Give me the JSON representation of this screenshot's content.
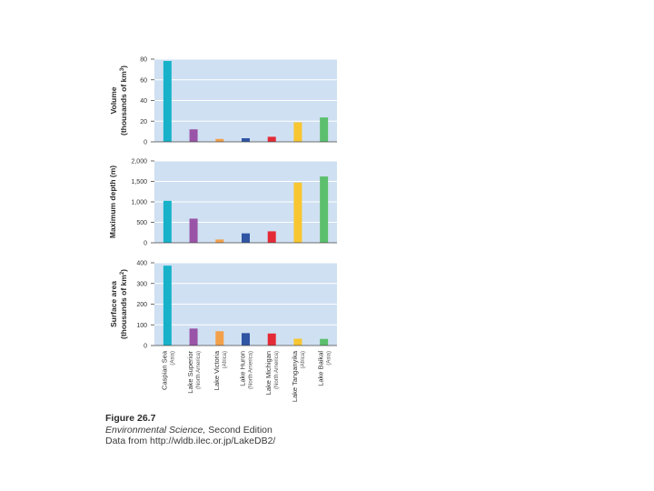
{
  "chart_data": [
    {
      "type": "bar",
      "ylabel_line1": "Volume",
      "ylabel_line2": "(thousands of km",
      "ylabel_sup": "3",
      "ylabel_end": ")",
      "ylim": [
        0,
        80
      ],
      "ticks": [
        0,
        20,
        40,
        60,
        80
      ],
      "tick_labels": [
        "0",
        "20",
        "40",
        "60",
        "80"
      ],
      "categories": [
        "Caspian Sea",
        "Lake Superior",
        "Lake Victoria",
        "Lake Huron",
        "Lake Michigan",
        "Lake Tanganyika",
        "Lake Baikal"
      ],
      "values": [
        78.2,
        12.1,
        2.8,
        3.5,
        4.9,
        18.9,
        23.6
      ]
    },
    {
      "type": "bar",
      "ylabel_line1": "Maximum depth (m)",
      "ylabel_line2": "",
      "ylabel_sup": "",
      "ylabel_end": "",
      "ylim": [
        0,
        2000
      ],
      "ticks": [
        0,
        500,
        1000,
        1500,
        2000
      ],
      "tick_labels": [
        "0",
        "500",
        "1,000",
        "1,500",
        "2,000"
      ],
      "categories": [
        "Caspian Sea",
        "Lake Superior",
        "Lake Victoria",
        "Lake Huron",
        "Lake Michigan",
        "Lake Tanganyika",
        "Lake Baikal"
      ],
      "values": [
        1025,
        590,
        80,
        230,
        280,
        1470,
        1620
      ]
    },
    {
      "type": "bar",
      "ylabel_line1": "Surface area",
      "ylabel_line2": "(thousands of km",
      "ylabel_sup": "2",
      "ylabel_end": ")",
      "ylim": [
        0,
        400
      ],
      "ticks": [
        0,
        100,
        200,
        300,
        400
      ],
      "tick_labels": [
        "0",
        "100",
        "200",
        "300",
        "400"
      ],
      "categories": [
        "Caspian Sea",
        "Lake Superior",
        "Lake Victoria",
        "Lake Huron",
        "Lake Michigan",
        "Lake Tanganyika",
        "Lake Baikal"
      ],
      "values": [
        386,
        82,
        69,
        60,
        58,
        33,
        32
      ]
    }
  ],
  "lakes": [
    {
      "name": "Caspian Sea",
      "region": "(Asia)",
      "color": "#17b2c9"
    },
    {
      "name": "Lake Superior",
      "region": "(North America)",
      "color": "#9a54a7"
    },
    {
      "name": "Lake Victoria",
      "region": "(Africa)",
      "color": "#f3a04a"
    },
    {
      "name": "Lake Huron",
      "region": "(North America)",
      "color": "#2f55a3"
    },
    {
      "name": "Lake Michigan",
      "region": "(North America)",
      "color": "#e52a37"
    },
    {
      "name": "Lake Tanganyika",
      "region": "(Africa)",
      "color": "#f8c630"
    },
    {
      "name": "Lake Baikal",
      "region": "(Asia)",
      "color": "#5cbf6d"
    }
  ],
  "colors": {
    "plot_bg": "#cfe0f2",
    "grid": "#ffffff",
    "axis": "#444444"
  },
  "caption": {
    "figure": "Figure 26.7",
    "book": "Environmental Science,",
    "edition": " Second Edition",
    "source": "Data from http://wldb.ilec.or.jp/LakeDB2/"
  }
}
